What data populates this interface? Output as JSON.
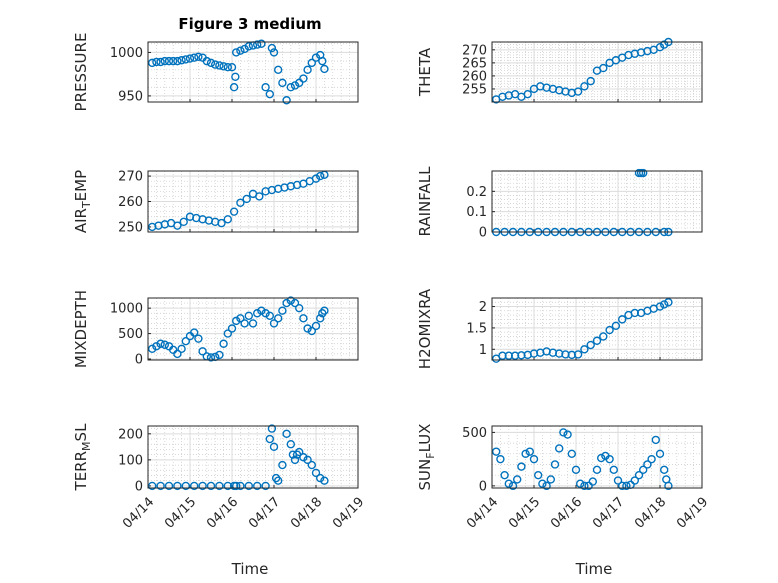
{
  "figure": {
    "title": "Figure 3 medium",
    "marker_color": "#0072BD",
    "time_ticks": [
      "04/14",
      "04/15",
      "04/16",
      "04/17",
      "04/18",
      "04/19"
    ]
  },
  "chart_data": [
    {
      "type": "scatter",
      "ylabel_parts": [
        {
          "t": "PRESSURE"
        }
      ],
      "xlim": [
        0,
        5
      ],
      "ylim": [
        943,
        1012
      ],
      "yticks": [
        950,
        1000
      ],
      "ytick_labels": [
        "950",
        "1000"
      ],
      "x": [
        0.1,
        0.2,
        0.3,
        0.4,
        0.5,
        0.6,
        0.7,
        0.8,
        0.9,
        1.0,
        1.1,
        1.2,
        1.3,
        1.4,
        1.5,
        1.6,
        1.7,
        1.8,
        1.9,
        2.0,
        2.05,
        2.08,
        2.1,
        2.2,
        2.3,
        2.4,
        2.5,
        2.6,
        2.7,
        2.8,
        2.9,
        2.95,
        3.0,
        3.1,
        3.2,
        3.3,
        3.4,
        3.5,
        3.6,
        3.7,
        3.8,
        3.9,
        4.0,
        4.1,
        4.15,
        4.2
      ],
      "y": [
        988,
        989,
        989,
        990,
        990,
        990,
        990,
        991,
        992,
        993,
        994,
        995,
        994,
        990,
        988,
        986,
        985,
        984,
        983,
        983,
        960,
        972,
        1000,
        1002,
        1004,
        1007,
        1008,
        1009,
        1010,
        960,
        952,
        1005,
        1000,
        980,
        965,
        945,
        960,
        962,
        965,
        970,
        980,
        988,
        994,
        997,
        990,
        981
      ]
    },
    {
      "type": "scatter",
      "ylabel_parts": [
        {
          "t": "THETA"
        }
      ],
      "xlim": [
        0,
        5
      ],
      "ylim": [
        250,
        273
      ],
      "yticks": [
        255,
        260,
        265,
        270
      ],
      "ytick_labels": [
        "255",
        "260",
        "265",
        "270"
      ],
      "x": [
        0.1,
        0.25,
        0.4,
        0.55,
        0.7,
        0.85,
        1.0,
        1.15,
        1.3,
        1.45,
        1.6,
        1.75,
        1.9,
        2.05,
        2.2,
        2.35,
        2.5,
        2.65,
        2.8,
        2.95,
        3.1,
        3.25,
        3.4,
        3.55,
        3.7,
        3.85,
        4.0,
        4.1,
        4.2
      ],
      "y": [
        251,
        252,
        252.5,
        253,
        252,
        253,
        255,
        256,
        255.5,
        255,
        254.5,
        254,
        253.5,
        254,
        256,
        258,
        262,
        263,
        265,
        266,
        267,
        268,
        268.5,
        269,
        269.5,
        270,
        271,
        272,
        273
      ]
    },
    {
      "type": "scatter",
      "ylabel_parts": [
        {
          "t": "AIR"
        },
        {
          "t": "T",
          "sub": true
        },
        {
          "t": "EMP"
        }
      ],
      "xlim": [
        0,
        5
      ],
      "ylim": [
        248,
        272
      ],
      "yticks": [
        250,
        260,
        270
      ],
      "ytick_labels": [
        "250",
        "260",
        "270"
      ],
      "x": [
        0.1,
        0.25,
        0.4,
        0.55,
        0.7,
        0.85,
        1.0,
        1.15,
        1.3,
        1.45,
        1.6,
        1.75,
        1.9,
        2.05,
        2.2,
        2.35,
        2.5,
        2.65,
        2.8,
        2.95,
        3.1,
        3.25,
        3.4,
        3.55,
        3.7,
        3.85,
        4.0,
        4.1,
        4.2
      ],
      "y": [
        250,
        250.5,
        251,
        251.5,
        250.5,
        252,
        254,
        253.5,
        253,
        252.5,
        252,
        251.5,
        253,
        256,
        259.5,
        261,
        263,
        262,
        264,
        264.5,
        265,
        265.5,
        266,
        266.5,
        267,
        268,
        269,
        270,
        270.5
      ]
    },
    {
      "type": "scatter",
      "ylabel_parts": [
        {
          "t": "RAINFALL"
        }
      ],
      "xlim": [
        0,
        5
      ],
      "ylim": [
        0,
        0.3
      ],
      "yticks": [
        0,
        0.1,
        0.2
      ],
      "ytick_labels": [
        "0",
        "0.1",
        "0.2"
      ],
      "x": [
        0.1,
        0.3,
        0.5,
        0.7,
        0.9,
        1.1,
        1.3,
        1.5,
        1.7,
        1.9,
        2.1,
        2.3,
        2.5,
        2.7,
        2.9,
        3.1,
        3.3,
        3.5,
        3.7,
        3.9,
        4.1,
        4.2,
        3.5,
        3.55,
        3.6
      ],
      "y": [
        0,
        0,
        0,
        0,
        0,
        0,
        0,
        0,
        0,
        0,
        0,
        0,
        0,
        0,
        0,
        0,
        0,
        0,
        0,
        0,
        0,
        0,
        0.29,
        0.29,
        0.29
      ]
    },
    {
      "type": "scatter",
      "ylabel_parts": [
        {
          "t": "MIXDEPTH"
        }
      ],
      "xlim": [
        0,
        5
      ],
      "ylim": [
        -20,
        1200
      ],
      "yticks": [
        0,
        500,
        1000
      ],
      "ytick_labels": [
        "0",
        "500",
        "1000"
      ],
      "x": [
        0.1,
        0.2,
        0.3,
        0.4,
        0.5,
        0.6,
        0.7,
        0.8,
        0.9,
        1.0,
        1.1,
        1.2,
        1.3,
        1.4,
        1.5,
        1.6,
        1.7,
        1.8,
        1.9,
        2.0,
        2.1,
        2.2,
        2.3,
        2.4,
        2.5,
        2.6,
        2.7,
        2.8,
        2.9,
        3.0,
        3.1,
        3.2,
        3.3,
        3.4,
        3.5,
        3.6,
        3.7,
        3.8,
        3.9,
        4.0,
        4.1,
        4.15,
        4.2
      ],
      "y": [
        200,
        250,
        300,
        280,
        250,
        180,
        100,
        200,
        350,
        450,
        520,
        400,
        150,
        50,
        30,
        40,
        80,
        300,
        500,
        600,
        750,
        800,
        700,
        850,
        700,
        900,
        950,
        900,
        850,
        700,
        800,
        950,
        1100,
        1150,
        1100,
        1000,
        800,
        600,
        550,
        650,
        800,
        900,
        950
      ]
    },
    {
      "type": "scatter",
      "ylabel_parts": [
        {
          "t": "H2OMIXRA"
        }
      ],
      "xlim": [
        0,
        5
      ],
      "ylim": [
        0.75,
        2.2
      ],
      "yticks": [
        1,
        1.5,
        2
      ],
      "ytick_labels": [
        "1",
        "1.5",
        "2"
      ],
      "x": [
        0.1,
        0.25,
        0.4,
        0.55,
        0.7,
        0.85,
        1.0,
        1.15,
        1.3,
        1.45,
        1.6,
        1.75,
        1.9,
        2.05,
        2.2,
        2.35,
        2.5,
        2.65,
        2.8,
        2.95,
        3.1,
        3.25,
        3.4,
        3.55,
        3.7,
        3.85,
        4.0,
        4.1,
        4.2
      ],
      "y": [
        0.78,
        0.85,
        0.85,
        0.85,
        0.86,
        0.87,
        0.9,
        0.92,
        0.95,
        0.92,
        0.9,
        0.88,
        0.87,
        0.88,
        1.0,
        1.1,
        1.2,
        1.3,
        1.45,
        1.55,
        1.7,
        1.8,
        1.85,
        1.85,
        1.9,
        1.95,
        2.0,
        2.05,
        2.1
      ]
    },
    {
      "type": "scatter",
      "ylabel_parts": [
        {
          "t": "TERR"
        },
        {
          "t": "M",
          "sub": true
        },
        {
          "t": "SL"
        }
      ],
      "xlim": [
        0,
        5
      ],
      "ylim": [
        -8,
        230
      ],
      "yticks": [
        0,
        100,
        200
      ],
      "ytick_labels": [
        "0",
        "100",
        "200"
      ],
      "x": [
        0.1,
        0.3,
        0.5,
        0.7,
        0.9,
        1.1,
        1.3,
        1.5,
        1.7,
        1.9,
        2.05,
        2.1,
        2.2,
        2.4,
        2.6,
        2.8,
        2.9,
        2.95,
        3.0,
        3.05,
        3.1,
        3.2,
        3.3,
        3.4,
        3.45,
        3.5,
        3.55,
        3.6,
        3.7,
        3.8,
        3.9,
        4.0,
        4.1,
        4.2
      ],
      "y": [
        0,
        0,
        0,
        0,
        0,
        0,
        0,
        0,
        0,
        0,
        0,
        0,
        0,
        0,
        0,
        0,
        180,
        220,
        150,
        30,
        20,
        80,
        200,
        160,
        120,
        100,
        120,
        130,
        110,
        100,
        80,
        50,
        30,
        20
      ]
    },
    {
      "type": "scatter",
      "ylabel_parts": [
        {
          "t": "SUN"
        },
        {
          "t": "F",
          "sub": true
        },
        {
          "t": "LUX"
        }
      ],
      "xlim": [
        0,
        5
      ],
      "ylim": [
        -20,
        560
      ],
      "yticks": [
        0,
        500
      ],
      "ytick_labels": [
        "0",
        "500"
      ],
      "x": [
        0.1,
        0.2,
        0.3,
        0.4,
        0.5,
        0.6,
        0.7,
        0.8,
        0.9,
        1.0,
        1.1,
        1.2,
        1.3,
        1.4,
        1.5,
        1.6,
        1.7,
        1.8,
        1.9,
        2.0,
        2.1,
        2.2,
        2.3,
        2.4,
        2.5,
        2.6,
        2.7,
        2.8,
        2.9,
        3.0,
        3.1,
        3.2,
        3.3,
        3.4,
        3.5,
        3.6,
        3.7,
        3.8,
        3.9,
        4.0,
        4.1,
        4.15,
        4.2
      ],
      "y": [
        320,
        250,
        100,
        20,
        0,
        60,
        180,
        300,
        320,
        250,
        100,
        20,
        0,
        60,
        200,
        350,
        500,
        480,
        300,
        150,
        20,
        0,
        0,
        40,
        150,
        260,
        280,
        250,
        150,
        50,
        0,
        0,
        10,
        50,
        100,
        150,
        200,
        250,
        430,
        300,
        150,
        60,
        0
      ]
    }
  ],
  "x_axis_label": "Time"
}
